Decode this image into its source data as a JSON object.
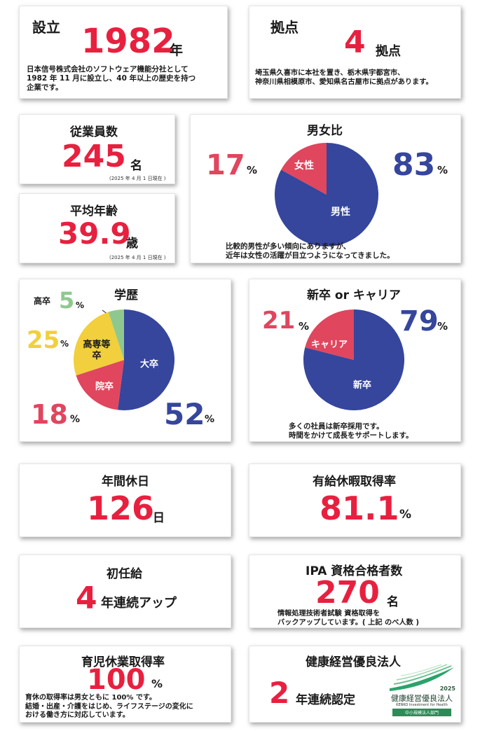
{
  "founded": {
    "title": "設立",
    "value": "1982",
    "unit": "年",
    "desc_lines": [
      "日本信号株式会社のソフトウェア機能分社として",
      "1982 年 11 月に設立し、40 年以上の歴史を持つ",
      "企業です。"
    ]
  },
  "locations": {
    "title": "拠点",
    "value": "4",
    "unit": "拠点",
    "desc_lines": [
      "埼玉県久喜市に本社を置き、栃木県宇都宮市、",
      "神奈川県相模原市、愛知県名古屋市に拠点があります。"
    ]
  },
  "employees": {
    "title": "従業員数",
    "value": "245",
    "unit": "名",
    "note": "(2025 年 4 月 1 日現在 )"
  },
  "avg_age": {
    "title": "平均年齢",
    "value": "39.9",
    "unit": "歳",
    "note": "(2025 年 4 月 1 日現在 )"
  },
  "gender": {
    "title": "男女比",
    "female_pct": "17",
    "male_pct": "83",
    "pct_unit": "%",
    "female_label": "女性",
    "male_label": "男性",
    "desc_lines": [
      "比較的男性が多い傾向にありますが、",
      "近年は女性の活躍が目立つようになってきました。"
    ],
    "colors": {
      "male": "#35469c",
      "female": "#e0465e"
    }
  },
  "education": {
    "title": "学歴",
    "labels": {
      "highschool": "高卒",
      "college": "高専等卒",
      "junior": "院卒",
      "university": "大卒"
    },
    "pcts": {
      "highschool": "5",
      "college": "25",
      "junior": "18",
      "university": "52"
    },
    "pct_unit": "%",
    "colors": {
      "university": "#35469c",
      "junior": "#e0465e",
      "college": "#f2cf3c",
      "highschool": "#8fc88e"
    }
  },
  "hire_type": {
    "title": "新卒 or キャリア",
    "career_pct": "21",
    "new_pct": "79",
    "pct_unit": "%",
    "career_label": "キャリア",
    "new_label": "新卒",
    "desc_lines": [
      "多くの社員は新卒採用です。",
      "時間をかけて成長をサポートします。"
    ]
  },
  "holidays": {
    "title": "年間休日",
    "value": "126",
    "unit": "日"
  },
  "paid_leave": {
    "title": "有給休暇取得率",
    "value": "81.1",
    "unit": "%"
  },
  "starting_salary": {
    "title": "初任給",
    "value": "4",
    "unit": "年連続アップ"
  },
  "ipa": {
    "title": "IPA 資格合格者数",
    "value": "270",
    "unit": "名",
    "desc_lines": [
      "情報処理技術者試験 資格取得を",
      "バックアップしています。( 上記 のべ人数 )"
    ]
  },
  "childcare": {
    "title": "育児休業取得率",
    "value": "100",
    "unit": "%",
    "desc_lines": [
      "育休の取得率は男女ともに 100% です。",
      "結婚・出産・介護をはじめ、ライフステージの変化に",
      "おける働き方に対応しています。"
    ]
  },
  "health": {
    "title": "健康経営優良法人",
    "value": "2",
    "unit": "年連続認定",
    "logo_year": "2025",
    "logo_title": "健康経営優良法人",
    "logo_en": "KENKO Investment for Health",
    "logo_tag": "中小規模法人部門"
  },
  "chart_data": [
    {
      "type": "pie",
      "title": "男女比",
      "categories": [
        "男性",
        "女性"
      ],
      "values": [
        83,
        17
      ]
    },
    {
      "type": "pie",
      "title": "学歴",
      "categories": [
        "大卒",
        "院卒",
        "高専等卒",
        "高卒"
      ],
      "values": [
        52,
        18,
        25,
        5
      ]
    },
    {
      "type": "pie",
      "title": "新卒 or キャリア",
      "categories": [
        "新卒",
        "キャリア"
      ],
      "values": [
        79,
        21
      ]
    }
  ]
}
